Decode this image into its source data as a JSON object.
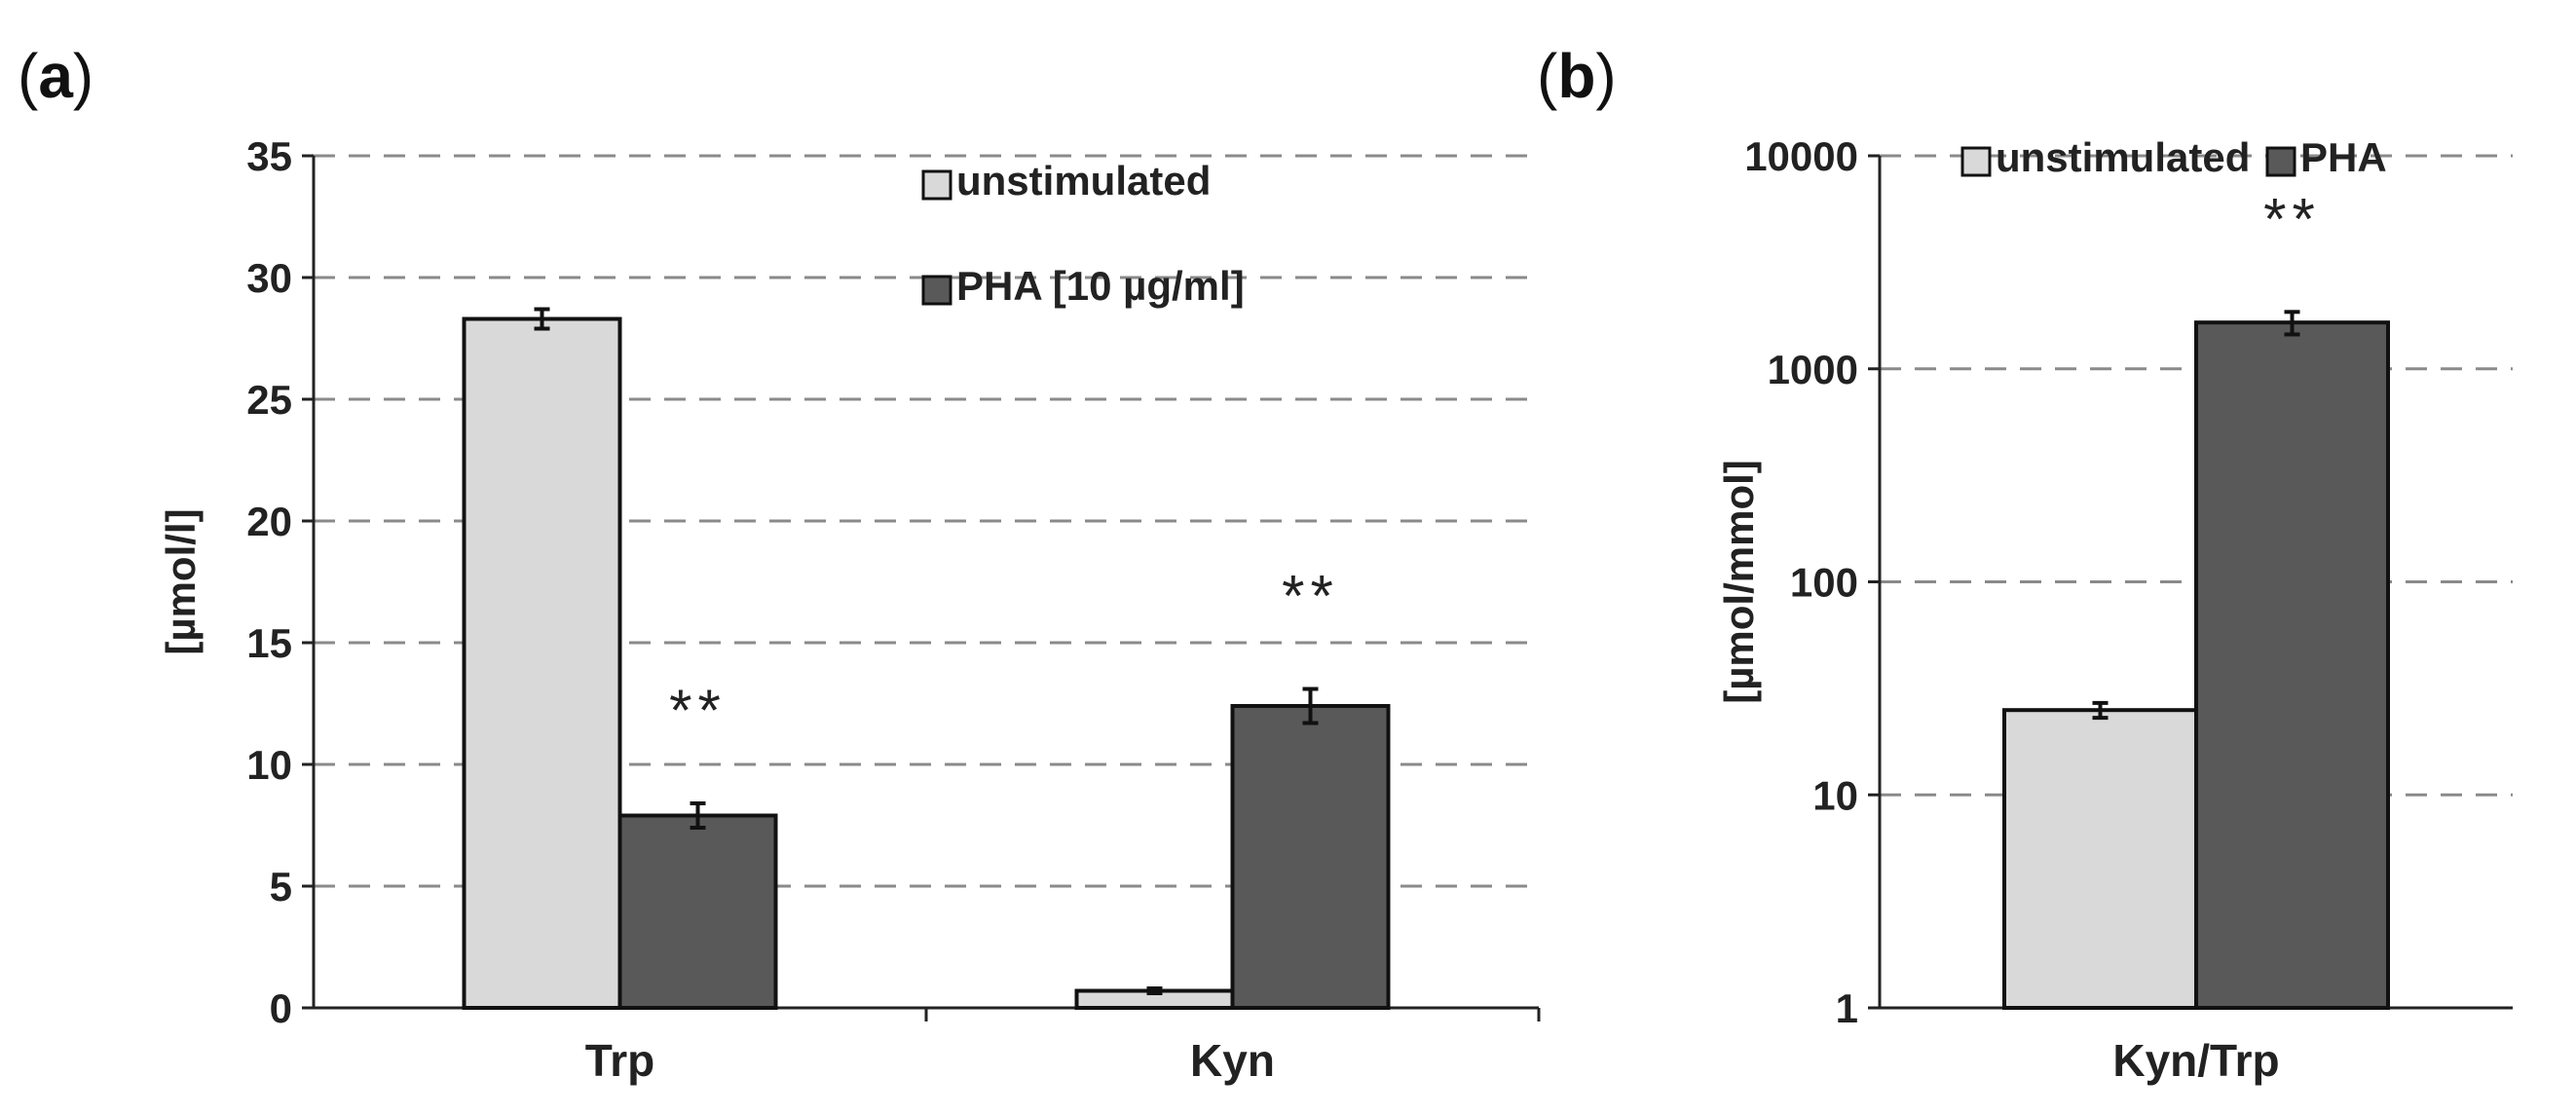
{
  "chart_data": [
    {
      "panel": "(a)",
      "type": "bar",
      "scale": "linear",
      "categories": [
        "Trp",
        "Kyn"
      ],
      "series": [
        {
          "name": "unstimulated",
          "color": "#d9d9d9",
          "values": [
            28.3,
            0.7
          ],
          "errors": [
            0.4,
            0.1
          ]
        },
        {
          "name": "PHA [10 µg/ml]",
          "color": "#595959",
          "values": [
            7.9,
            12.4
          ],
          "errors": [
            0.5,
            0.7
          ]
        }
      ],
      "significance": [
        {
          "category": "Trp",
          "series": "PHA [10 µg/ml]",
          "label": "**"
        },
        {
          "category": "Kyn",
          "series": "PHA [10 µg/ml]",
          "label": "**"
        }
      ],
      "ylabel": "[µmol/l]",
      "ylim": [
        0,
        35
      ],
      "yticks": [
        0,
        5,
        10,
        15,
        20,
        25,
        30,
        35
      ],
      "grid": true,
      "legend_position": "top-right"
    },
    {
      "panel": "(b)",
      "type": "bar",
      "scale": "log",
      "categories": [
        "Kyn/Trp"
      ],
      "series": [
        {
          "name": "unstimulated",
          "color": "#d9d9d9",
          "values": [
            25
          ],
          "errors": [
            2
          ]
        },
        {
          "name": "PHA",
          "color": "#595959",
          "values": [
            1650
          ],
          "errors": [
            200
          ]
        }
      ],
      "significance": [
        {
          "category": "Kyn/Trp",
          "series": "PHA",
          "label": "**"
        }
      ],
      "ylabel": "[µmol/mmol]",
      "ylim": [
        1,
        10000
      ],
      "yticks": [
        1,
        10,
        100,
        1000,
        10000
      ],
      "grid": true,
      "legend_position": "top"
    }
  ]
}
